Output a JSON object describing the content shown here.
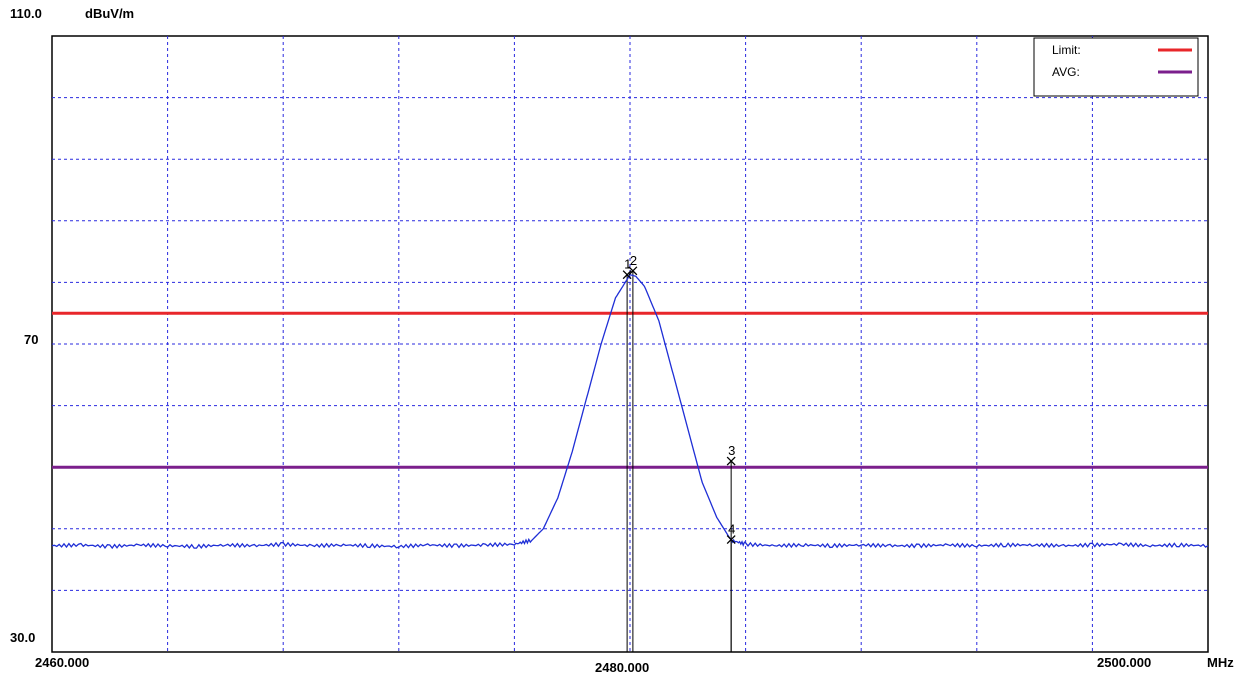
{
  "chart_data": {
    "type": "line",
    "y_top_label": "110.0",
    "y_unit_label": "dBuV/m",
    "x_unit_label": "MHz",
    "xlim": [
      2460.0,
      2500.0
    ],
    "ylim": [
      30.0,
      110.0
    ],
    "x_tick_labels": [
      {
        "value": 2460.0,
        "label": "2460.000"
      },
      {
        "value": 2480.0,
        "label": "2480.000"
      },
      {
        "value": 2500.0,
        "label": "2500.000"
      }
    ],
    "y_tick_labels": [
      {
        "value": 110.0,
        "label": "110.0"
      },
      {
        "value": 70.0,
        "label": "70"
      },
      {
        "value": 30.0,
        "label": "30.0"
      }
    ],
    "x_gridlines": [
      2460,
      2464,
      2468,
      2472,
      2476,
      2480,
      2484,
      2488,
      2492,
      2496,
      2500
    ],
    "y_gridlines": [
      30,
      38,
      46,
      54,
      62,
      70,
      78,
      86,
      94,
      102,
      110
    ],
    "grid": true,
    "legend": {
      "placement": "top-right",
      "entries": [
        {
          "name": "Limit:",
          "color": "#e8262a"
        },
        {
          "name": "AVG:",
          "color": "#7b1f8c"
        }
      ]
    },
    "hlines": [
      {
        "name": "Limit",
        "y": 74.0,
        "color": "#e8262a"
      },
      {
        "name": "AVG",
        "y": 54.0,
        "color": "#7b1f8c"
      }
    ],
    "trace": {
      "color": "#1f2fd6",
      "points": [
        [
          2460.0,
          43.8
        ],
        [
          2461.0,
          43.9
        ],
        [
          2462.0,
          43.7
        ],
        [
          2463.0,
          43.9
        ],
        [
          2464.0,
          43.8
        ],
        [
          2465.0,
          43.7
        ],
        [
          2466.0,
          43.9
        ],
        [
          2467.0,
          43.8
        ],
        [
          2468.0,
          44.0
        ],
        [
          2469.0,
          43.8
        ],
        [
          2470.0,
          43.9
        ],
        [
          2471.0,
          43.8
        ],
        [
          2472.0,
          43.7
        ],
        [
          2473.0,
          43.9
        ],
        [
          2474.0,
          43.8
        ],
        [
          2475.0,
          43.9
        ],
        [
          2476.0,
          44.0
        ],
        [
          2476.6,
          44.5
        ],
        [
          2477.0,
          46.0
        ],
        [
          2477.5,
          50.0
        ],
        [
          2478.0,
          56.0
        ],
        [
          2478.5,
          63.0
        ],
        [
          2479.0,
          70.0
        ],
        [
          2479.5,
          76.0
        ],
        [
          2480.0,
          79.0
        ],
        [
          2480.2,
          78.8
        ],
        [
          2480.5,
          77.5
        ],
        [
          2481.0,
          73.0
        ],
        [
          2481.5,
          66.0
        ],
        [
          2482.0,
          59.0
        ],
        [
          2482.5,
          52.0
        ],
        [
          2483.0,
          47.5
        ],
        [
          2483.5,
          44.5
        ],
        [
          2484.0,
          44.0
        ],
        [
          2485.0,
          43.8
        ],
        [
          2486.0,
          43.9
        ],
        [
          2487.0,
          43.8
        ],
        [
          2488.0,
          43.9
        ],
        [
          2489.0,
          43.8
        ],
        [
          2490.0,
          43.8
        ],
        [
          2491.0,
          43.9
        ],
        [
          2492.0,
          43.8
        ],
        [
          2493.0,
          43.9
        ],
        [
          2494.0,
          43.9
        ],
        [
          2495.0,
          43.8
        ],
        [
          2496.0,
          43.9
        ],
        [
          2497.0,
          44.0
        ],
        [
          2498.0,
          43.8
        ],
        [
          2499.0,
          43.9
        ],
        [
          2500.0,
          43.8
        ]
      ]
    },
    "markers": [
      {
        "label": "1",
        "x": 2479.9,
        "y": 79.0
      },
      {
        "label": "2",
        "x": 2480.1,
        "y": 79.5
      },
      {
        "label": "3",
        "x": 2483.5,
        "y": 54.8
      },
      {
        "label": "4",
        "x": 2483.5,
        "y": 44.6
      }
    ]
  }
}
